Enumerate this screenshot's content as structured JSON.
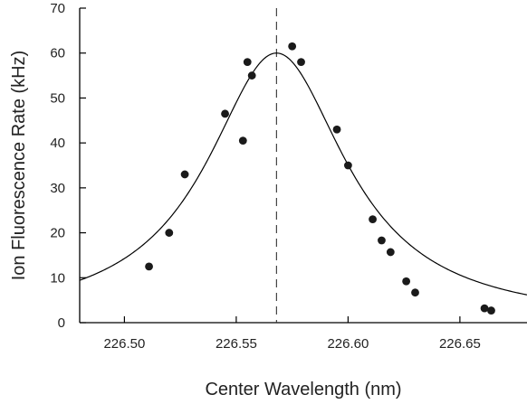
{
  "chart_data": {
    "type": "scatter",
    "title": "",
    "xlabel": "Center Wavelength (nm)",
    "ylabel": "Ion Fluorescence Rate (kHz)",
    "xlim": [
      226.48,
      226.68
    ],
    "ylim": [
      0,
      70
    ],
    "x_ticks": [
      226.5,
      226.55,
      226.6,
      226.65
    ],
    "x_tick_labels": [
      "226.50",
      "226.55",
      "226.60",
      "226.65"
    ],
    "y_ticks": [
      0,
      10,
      20,
      30,
      40,
      50,
      60,
      70
    ],
    "y_tick_labels": [
      "0",
      "10",
      "20",
      "30",
      "40",
      "50",
      "60",
      "70"
    ],
    "grid": false,
    "series": [
      {
        "points": [
          [
            226.511,
            12.5
          ],
          [
            226.52,
            20.0
          ],
          [
            226.527,
            33.0
          ],
          [
            226.545,
            46.5
          ],
          [
            226.553,
            40.5
          ],
          [
            226.555,
            58.0
          ],
          [
            226.557,
            55.0
          ],
          [
            226.575,
            61.5
          ],
          [
            226.579,
            58.0
          ],
          [
            226.595,
            43.0
          ],
          [
            226.6,
            35.0
          ],
          [
            226.611,
            23.0
          ],
          [
            226.615,
            18.3
          ],
          [
            226.619,
            15.7
          ],
          [
            226.626,
            9.2
          ],
          [
            226.63,
            6.7
          ],
          [
            226.661,
            3.2
          ],
          [
            226.664,
            2.7
          ]
        ],
        "marker_color": "#1a1a1a"
      }
    ],
    "fit_curve": {
      "model": "lorentzian",
      "center": 226.568,
      "peak": 60.0,
      "hwhm": 0.038,
      "color": "#000000"
    },
    "reference_line": {
      "x": 226.568,
      "style": "dashed",
      "color": "#333333"
    }
  }
}
